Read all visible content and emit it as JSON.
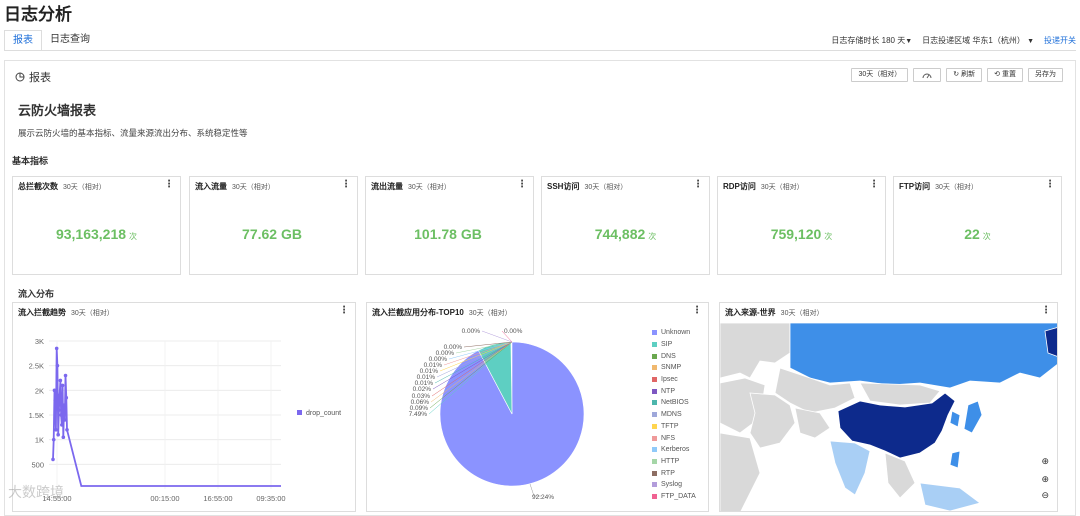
{
  "page": {
    "title": "日志分析"
  },
  "tabs": [
    {
      "label": "报表"
    },
    {
      "label": "日志查询"
    }
  ],
  "top_controls": {
    "retention_label": "日志存储时长",
    "retention_value": "180 天",
    "region_label": "日志投递区域",
    "region_value": "华东1（杭州）",
    "delivery_switch": "投递开关"
  },
  "panel": {
    "title": "报表",
    "buttons": {
      "range": "30天（相对）",
      "refresh": "刷新",
      "reset": "重置",
      "save_as": "另存为"
    }
  },
  "report": {
    "title": "云防火墙报表",
    "description": "展示云防火墙的基本指标、流量来源流出分布、系统稳定性等"
  },
  "sections": {
    "basic": "基本指标",
    "inflow": "流入分布"
  },
  "metrics": [
    {
      "title": "总拦截次数",
      "period": "30天（相对）",
      "value": "93,163,218",
      "unit": "次"
    },
    {
      "title": "流入流量",
      "period": "30天（相对）",
      "value": "77.62 GB",
      "unit": ""
    },
    {
      "title": "流出流量",
      "period": "30天（相对）",
      "value": "101.78 GB",
      "unit": ""
    },
    {
      "title": "SSH访问",
      "period": "30天（相对）",
      "value": "744,882",
      "unit": "次"
    },
    {
      "title": "RDP访问",
      "period": "30天（相对）",
      "value": "759,120",
      "unit": "次"
    },
    {
      "title": "FTP访问",
      "period": "30天（相对）",
      "value": "22",
      "unit": "次"
    }
  ],
  "charts": {
    "trend": {
      "title": "流入拦截趋势",
      "period": "30天（相对）"
    },
    "pie": {
      "title": "流入拦截应用分布-TOP10",
      "period": "30天（相对）"
    },
    "map": {
      "title": "流入来源-世界",
      "period": "30天（相对）"
    }
  },
  "chart_data": [
    {
      "type": "line",
      "title": "流入拦截趋势",
      "y_ticks": [
        "500",
        "1K",
        "1.5K",
        "2K",
        "2.5K",
        "3K"
      ],
      "y_tick_values": [
        500,
        1000,
        1500,
        2000,
        2500,
        3000
      ],
      "x_ticks": [
        "14:55:00",
        "00:15:00",
        "16:55:00",
        "09:35:00"
      ],
      "ylim": [
        0,
        3000
      ],
      "series": [
        {
          "name": "drop_count",
          "values": [
            600,
            1000,
            2000,
            1800,
            1200,
            2850,
            2500,
            1100,
            1600,
            1900,
            2200,
            1500,
            1300,
            2100,
            1050,
            1700,
            1400,
            2300,
            1850,
            1200,
            60,
            60,
            60,
            60,
            60,
            60,
            60,
            60,
            60,
            60,
            60,
            60,
            60,
            60,
            60
          ]
        }
      ],
      "legend": "right",
      "color": "#7b68ee"
    },
    {
      "type": "pie",
      "title": "流入拦截应用分布-TOP10",
      "labels": [
        "Unknown",
        "SIP",
        "DNS",
        "SNMP",
        "Ipsec",
        "NTP",
        "NetBIOS",
        "MDNS",
        "TFTP",
        "NFS",
        "Kerberos",
        "HTTP",
        "RTP",
        "Syslog",
        "FTP_DATA"
      ],
      "values": [
        92.24,
        7.49,
        0.09,
        0.06,
        0.03,
        0.02,
        0.01,
        0.01,
        0.01,
        0.01,
        0.0,
        0.0,
        0.0,
        0.0,
        0.0
      ],
      "value_labels": [
        "92.24%",
        "7.49%",
        "0.09%",
        "0.06%",
        "0.03%",
        "0.02%",
        "0.01%",
        "0.01%",
        "0.01%",
        "0.01%",
        "0.00%",
        "0.00%",
        "0.00%",
        "0.00%",
        "0.00%"
      ],
      "colors": [
        "#8b93ff",
        "#5ecfc2",
        "#6aa84f",
        "#f0b86e",
        "#e06666",
        "#7e57c2",
        "#4db6ac",
        "#9fa8da",
        "#ffd54f",
        "#ef9a9a",
        "#90caf9",
        "#a5d6a7",
        "#8d6e63",
        "#b39ddb",
        "#f06292"
      ],
      "legend": "right"
    }
  ],
  "map": {
    "colors": {
      "high": "#0d2a8c",
      "medium": "#3e8fe8",
      "low": "#a9cff5",
      "none": "#d9d9d9",
      "sea": "#ffffff"
    }
  },
  "watermark": "大数跨境",
  "colors": {
    "accent": "#1e6fd9",
    "metric_value": "#6cbf63"
  }
}
